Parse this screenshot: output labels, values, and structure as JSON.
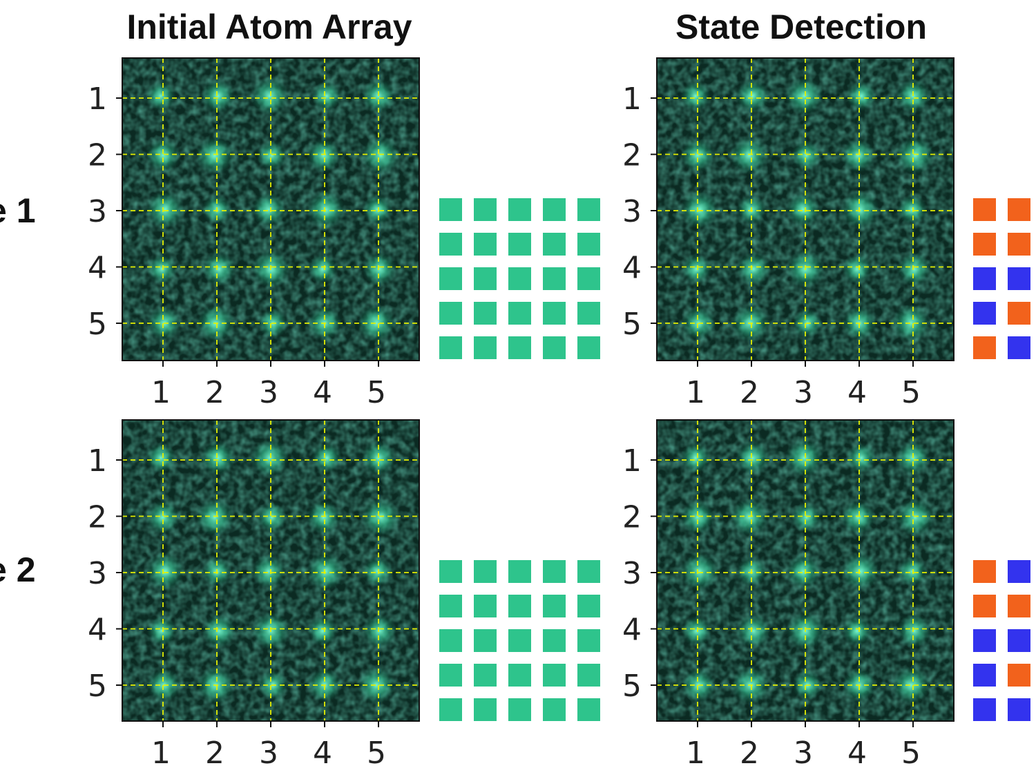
{
  "headers": {
    "initial": "Initial Atom Array",
    "detection": "State Detection"
  },
  "row_labels": [
    "e 1",
    "e 2"
  ],
  "colors": {
    "atom": "#2ec48c",
    "state_orange": "#f2621c",
    "state_blue": "#3333ee",
    "grid_line": "#e6f000"
  },
  "panels": [
    {
      "id": "initial-1",
      "x_tick_labels": [
        "1",
        "2",
        "3",
        "4",
        "5"
      ],
      "y_tick_labels": [
        "1",
        "2",
        "3",
        "4",
        "5"
      ]
    },
    {
      "id": "detection-1",
      "x_tick_labels": [
        "1",
        "2",
        "3",
        "4",
        "5"
      ],
      "y_tick_labels": [
        "1",
        "2",
        "3",
        "4",
        "5"
      ]
    },
    {
      "id": "initial-2",
      "x_tick_labels": [
        "1",
        "2",
        "3",
        "4",
        "5"
      ],
      "y_tick_labels": [
        "1",
        "2",
        "3",
        "4",
        "5"
      ]
    },
    {
      "id": "detection-2",
      "x_tick_labels": [
        "1",
        "2",
        "3",
        "4",
        "5"
      ],
      "y_tick_labels": [
        "1",
        "2",
        "3",
        "4",
        "5"
      ]
    }
  ],
  "state_grids": {
    "initial_1": [
      [
        "G",
        "G",
        "G",
        "G",
        "G"
      ],
      [
        "G",
        "G",
        "G",
        "G",
        "G"
      ],
      [
        "G",
        "G",
        "G",
        "G",
        "G"
      ],
      [
        "G",
        "G",
        "G",
        "G",
        "G"
      ],
      [
        "G",
        "G",
        "G",
        "G",
        "G"
      ]
    ],
    "initial_2": [
      [
        "G",
        "G",
        "G",
        "G",
        "G"
      ],
      [
        "G",
        "G",
        "G",
        "G",
        "G"
      ],
      [
        "G",
        "G",
        "G",
        "G",
        "G"
      ],
      [
        "G",
        "G",
        "G",
        "G",
        "G"
      ],
      [
        "G",
        "G",
        "G",
        "G",
        "G"
      ]
    ],
    "detection_1_visible": [
      [
        "O",
        "O"
      ],
      [
        "O",
        "O"
      ],
      [
        "B",
        "B"
      ],
      [
        "B",
        "O"
      ],
      [
        "O",
        "B"
      ]
    ],
    "detection_2_visible": [
      [
        "O",
        "B"
      ],
      [
        "O",
        "O"
      ],
      [
        "B",
        "B"
      ],
      [
        "B",
        "O"
      ],
      [
        "B",
        "B"
      ]
    ]
  }
}
